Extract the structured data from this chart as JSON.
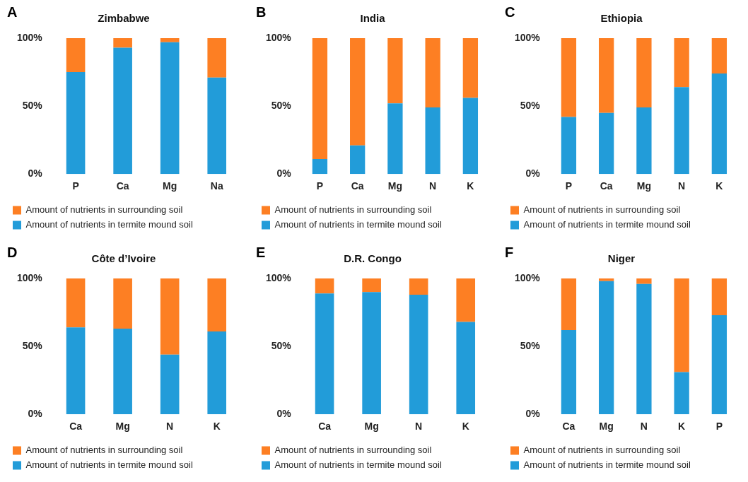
{
  "chart_data": [
    {
      "type": "bar",
      "stacked": true,
      "title": "Zimbabwe",
      "annotations": [
        "A"
      ],
      "categories": [
        "P",
        "Ca",
        "Mg",
        "Na"
      ],
      "ylim": [
        0,
        100
      ],
      "yticks": [
        {
          "value": 0,
          "label": "0%"
        },
        {
          "value": 50,
          "label": "50%"
        },
        {
          "value": 100,
          "label": "100%"
        }
      ],
      "grid": false,
      "legend": "bottom",
      "series": [
        {
          "name": "Amount of nutrients in termite mound soil",
          "color": "#229cd9",
          "values": [
            75,
            93,
            97,
            71
          ]
        },
        {
          "name": "Amount of nutrients in surrounding soil",
          "color": "#fd7f23",
          "values": [
            25,
            7,
            3,
            29
          ]
        }
      ]
    },
    {
      "type": "bar",
      "stacked": true,
      "title": "India",
      "annotations": [
        "B"
      ],
      "categories": [
        "P",
        "Ca",
        "Mg",
        "N",
        "K"
      ],
      "ylim": [
        0,
        100
      ],
      "yticks": [
        {
          "value": 0,
          "label": "0%"
        },
        {
          "value": 50,
          "label": "50%"
        },
        {
          "value": 100,
          "label": "100%"
        }
      ],
      "grid": false,
      "legend": "bottom",
      "series": [
        {
          "name": "Amount of nutrients in termite mound soil",
          "color": "#229cd9",
          "values": [
            11,
            21,
            52,
            49,
            56
          ]
        },
        {
          "name": "Amount of nutrients in surrounding soil",
          "color": "#fd7f23",
          "values": [
            89,
            79,
            48,
            51,
            44
          ]
        }
      ]
    },
    {
      "type": "bar",
      "stacked": true,
      "title": "Ethiopia",
      "annotations": [
        "C"
      ],
      "categories": [
        "P",
        "Ca",
        "Mg",
        "N",
        "K"
      ],
      "ylim": [
        0,
        100
      ],
      "yticks": [
        {
          "value": 0,
          "label": "0%"
        },
        {
          "value": 50,
          "label": "50%"
        },
        {
          "value": 100,
          "label": "100%"
        }
      ],
      "grid": false,
      "legend": "bottom",
      "series": [
        {
          "name": "Amount of nutrients in termite mound soil",
          "color": "#229cd9",
          "values": [
            42,
            45,
            49,
            64,
            74
          ]
        },
        {
          "name": "Amount of nutrients in surrounding soil",
          "color": "#fd7f23",
          "values": [
            58,
            55,
            51,
            36,
            26
          ]
        }
      ]
    },
    {
      "type": "bar",
      "stacked": true,
      "title": "Côte d’Ivoire",
      "annotations": [
        "D"
      ],
      "categories": [
        "Ca",
        "Mg",
        "N",
        "K"
      ],
      "ylim": [
        0,
        100
      ],
      "yticks": [
        {
          "value": 0,
          "label": "0%"
        },
        {
          "value": 50,
          "label": "50%"
        },
        {
          "value": 100,
          "label": "100%"
        }
      ],
      "grid": false,
      "legend": "bottom",
      "series": [
        {
          "name": "Amount of nutrients in termite mound soil",
          "color": "#229cd9",
          "values": [
            64,
            63,
            44,
            61
          ]
        },
        {
          "name": "Amount of nutrients in surrounding soil",
          "color": "#fd7f23",
          "values": [
            36,
            37,
            56,
            39
          ]
        }
      ]
    },
    {
      "type": "bar",
      "stacked": true,
      "title": "D.R. Congo",
      "annotations": [
        "E"
      ],
      "categories": [
        "Ca",
        "Mg",
        "N",
        "K"
      ],
      "ylim": [
        0,
        100
      ],
      "yticks": [
        {
          "value": 0,
          "label": "0%"
        },
        {
          "value": 50,
          "label": "50%"
        },
        {
          "value": 100,
          "label": "100%"
        }
      ],
      "grid": false,
      "legend": "bottom",
      "series": [
        {
          "name": "Amount of nutrients in termite mound soil",
          "color": "#229cd9",
          "values": [
            89,
            90,
            88,
            68
          ]
        },
        {
          "name": "Amount of nutrients in surrounding soil",
          "color": "#fd7f23",
          "values": [
            11,
            10,
            12,
            32
          ]
        }
      ]
    },
    {
      "type": "bar",
      "stacked": true,
      "title": "Niger",
      "annotations": [
        "F"
      ],
      "categories": [
        "Ca",
        "Mg",
        "N",
        "K",
        "P"
      ],
      "ylim": [
        0,
        100
      ],
      "yticks": [
        {
          "value": 0,
          "label": "0%"
        },
        {
          "value": 50,
          "label": "50%"
        },
        {
          "value": 100,
          "label": "100%"
        }
      ],
      "grid": false,
      "legend": "bottom",
      "series": [
        {
          "name": "Amount of nutrients in termite mound soil",
          "color": "#229cd9",
          "values": [
            62,
            98,
            96,
            31,
            73
          ]
        },
        {
          "name": "Amount of nutrients in surrounding soil",
          "color": "#fd7f23",
          "values": [
            38,
            2,
            4,
            69,
            27
          ]
        }
      ]
    }
  ]
}
